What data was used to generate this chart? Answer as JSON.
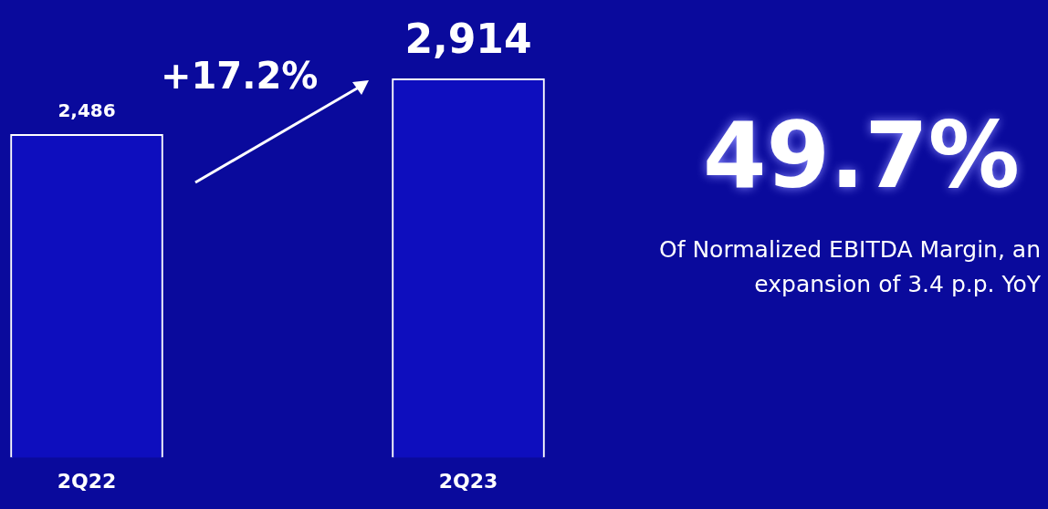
{
  "chart_data": {
    "type": "bar",
    "categories": [
      "2Q22",
      "2Q23"
    ],
    "values": [
      2486,
      2914
    ],
    "color": "#0e0ebe",
    "tick_labels": "x",
    "grid": false,
    "legend": false,
    "value_labels": [
      "2,486",
      "2,914"
    ],
    "annotations": [
      "+17.2%",
      "49.7%",
      "Of Normalized EBITDA Margin, an expansion of 3.4 p.p. YoY"
    ]
  }
}
